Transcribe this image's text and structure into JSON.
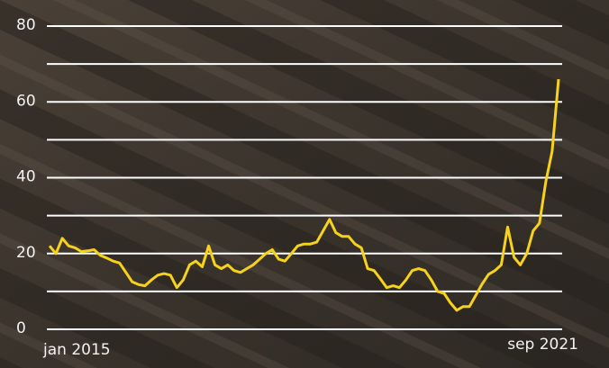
{
  "chart_data": {
    "type": "line",
    "categories": [
      "jan 2015",
      null,
      null,
      null,
      null,
      null,
      null,
      null,
      null,
      null,
      null,
      null,
      null,
      null,
      null,
      null,
      null,
      null,
      null,
      null,
      null,
      null,
      null,
      null,
      null,
      null,
      null,
      null,
      null,
      null,
      null,
      null,
      null,
      null,
      null,
      null,
      null,
      null,
      null,
      null,
      null,
      null,
      null,
      null,
      null,
      null,
      null,
      null,
      null,
      null,
      null,
      null,
      null,
      null,
      null,
      null,
      null,
      null,
      null,
      null,
      null,
      null,
      null,
      null,
      null,
      null,
      null,
      null,
      null,
      null,
      null,
      null,
      null,
      null,
      null,
      null,
      null,
      null,
      null,
      null,
      "sep 2021"
    ],
    "values": [
      22,
      20,
      24,
      22,
      21.5,
      20.5,
      20.7,
      21,
      19.5,
      18.8,
      18,
      17.5,
      15,
      12.5,
      11.8,
      11.5,
      13,
      14.3,
      14.7,
      14.3,
      11,
      13,
      17,
      18,
      16.5,
      22,
      17,
      16,
      17,
      15.5,
      15,
      16,
      17,
      18.5,
      20,
      21,
      18.5,
      18,
      20,
      22,
      22.5,
      22.5,
      23,
      26,
      29,
      25.5,
      24.5,
      24.5,
      22.5,
      21.5,
      16,
      15.5,
      13.3,
      11,
      11.5,
      11,
      13,
      15.5,
      16,
      15.5,
      13,
      10,
      9.5,
      7,
      5,
      6,
      6,
      9,
      12,
      14.5,
      15.5,
      17,
      27,
      19,
      17,
      20,
      26,
      28,
      39,
      47,
      66
    ],
    "color": "#f6d21c",
    "ylim": [
      0,
      80
    ],
    "yticks": [
      0,
      20,
      40,
      60,
      80
    ],
    "grid_lines": [
      0,
      10,
      20,
      30,
      40,
      50,
      60,
      70,
      80
    ],
    "grid": true
  }
}
